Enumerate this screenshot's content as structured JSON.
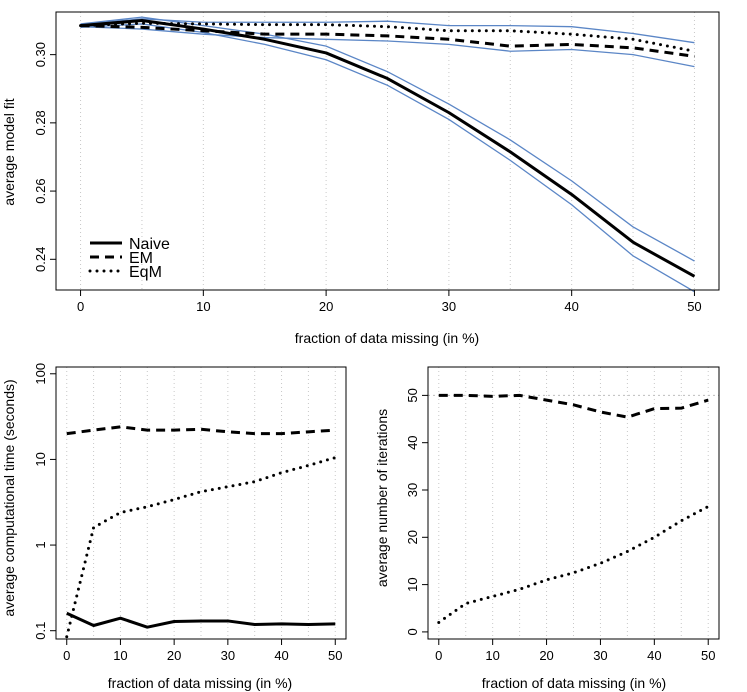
{
  "chart_data": [
    {
      "type": "line",
      "id": "model-fit",
      "xlabel": "fraction of data missing (in %)",
      "ylabel": "average model fit",
      "xlim": [
        -2,
        52
      ],
      "ylim": [
        0.231,
        0.3125
      ],
      "xticks": [
        0,
        10,
        20,
        30,
        40,
        50
      ],
      "xtick_labels": [
        "0",
        "10",
        "20",
        "30",
        "40",
        "50"
      ],
      "yticks": [
        0.24,
        0.26,
        0.28,
        0.3
      ],
      "ytick_labels": [
        "0.24",
        "0.26",
        "0.28",
        "0.30"
      ],
      "vgrid": [
        0,
        5,
        10,
        15,
        20,
        25,
        30,
        35,
        40,
        45,
        50
      ],
      "x": [
        0,
        5,
        10,
        15,
        20,
        25,
        30,
        35,
        40,
        45,
        50
      ],
      "series": [
        {
          "name": "Naive",
          "style": "solid",
          "values": [
            0.3085,
            0.31,
            0.3075,
            0.3045,
            0.3005,
            0.293,
            0.283,
            0.2715,
            0.259,
            0.245,
            0.235
          ]
        },
        {
          "name": "EM",
          "style": "dashed",
          "values": [
            0.3085,
            0.308,
            0.307,
            0.306,
            0.306,
            0.3055,
            0.3045,
            0.3025,
            0.303,
            0.302,
            0.2995
          ]
        },
        {
          "name": "EqM",
          "style": "dotted",
          "values": [
            0.3085,
            0.3092,
            0.309,
            0.3088,
            0.3088,
            0.3082,
            0.307,
            0.307,
            0.306,
            0.3045,
            0.301
          ]
        }
      ],
      "bands": [
        {
          "name": "Naive-upper",
          "values": [
            0.309,
            0.311,
            0.3085,
            0.306,
            0.3025,
            0.295,
            0.2855,
            0.275,
            0.263,
            0.2495,
            0.2395
          ]
        },
        {
          "name": "Naive-lower",
          "values": [
            0.308,
            0.309,
            0.3065,
            0.303,
            0.2985,
            0.291,
            0.281,
            0.269,
            0.256,
            0.241,
            0.2305
          ]
        },
        {
          "name": "EqM-upper",
          "values": [
            0.3088,
            0.3105,
            0.3095,
            0.3095,
            0.3095,
            0.3098,
            0.3085,
            0.3085,
            0.3082,
            0.3062,
            0.3035
          ]
        },
        {
          "name": "EM-lower",
          "values": [
            0.3082,
            0.3075,
            0.306,
            0.305,
            0.3045,
            0.304,
            0.303,
            0.301,
            0.3015,
            0.3,
            0.2965
          ]
        }
      ],
      "legend": {
        "position": "bottom-left",
        "entries": [
          "Naive",
          "EM",
          "EqM"
        ]
      }
    },
    {
      "type": "line",
      "id": "comp-time",
      "scale": "log",
      "xlabel": "fraction of data missing (in %)",
      "ylabel": "average computational time (seconds)",
      "xlim": [
        -2,
        52
      ],
      "ylim": [
        0.08,
        120
      ],
      "xticks": [
        0,
        10,
        20,
        30,
        40,
        50
      ],
      "xtick_labels": [
        "0",
        "10",
        "20",
        "30",
        "40",
        "50"
      ],
      "yticks": [
        0.1,
        1,
        10,
        100
      ],
      "ytick_labels": [
        "0.1",
        "1",
        "10",
        "100"
      ],
      "vgrid": [
        0,
        5,
        10,
        15,
        20,
        25,
        30,
        35,
        40,
        45,
        50
      ],
      "x": [
        0,
        5,
        10,
        15,
        20,
        25,
        30,
        35,
        40,
        45,
        50
      ],
      "series": [
        {
          "name": "Naive",
          "style": "solid",
          "values": [
            0.16,
            0.115,
            0.14,
            0.11,
            0.128,
            0.13,
            0.13,
            0.118,
            0.12,
            0.118,
            0.12
          ]
        },
        {
          "name": "EM",
          "style": "dashed",
          "values": [
            20,
            22,
            24,
            22,
            22,
            22.5,
            21,
            20,
            20,
            21,
            22
          ]
        },
        {
          "name": "EqM",
          "style": "dotted",
          "values": [
            0.085,
            1.6,
            2.4,
            2.8,
            3.4,
            4.2,
            4.8,
            5.5,
            7,
            8.5,
            10.5
          ]
        }
      ]
    },
    {
      "type": "line",
      "id": "iterations",
      "xlabel": "fraction of data missing (in %)",
      "ylabel": "average number of iterations",
      "xlim": [
        -2,
        52
      ],
      "ylim": [
        -1.5,
        56
      ],
      "xticks": [
        0,
        10,
        20,
        30,
        40,
        50
      ],
      "xtick_labels": [
        "0",
        "10",
        "20",
        "30",
        "40",
        "50"
      ],
      "yticks": [
        0,
        10,
        20,
        30,
        40,
        50
      ],
      "ytick_labels": [
        "0",
        "10",
        "20",
        "30",
        "40",
        "50"
      ],
      "vgrid": [
        0,
        5,
        10,
        15,
        20,
        25,
        30,
        35,
        40,
        45,
        50
      ],
      "hline": 50,
      "x": [
        0,
        5,
        10,
        15,
        20,
        25,
        30,
        35,
        40,
        45,
        50
      ],
      "series": [
        {
          "name": "EM",
          "style": "dashed",
          "values": [
            50,
            50,
            49.8,
            50,
            49,
            48,
            46.5,
            45.4,
            47.2,
            47.3,
            49
          ]
        },
        {
          "name": "EqM",
          "style": "dotted",
          "values": [
            2,
            6,
            7.5,
            9,
            11,
            12.5,
            14.5,
            17,
            20,
            23.5,
            26.5
          ]
        }
      ]
    }
  ]
}
